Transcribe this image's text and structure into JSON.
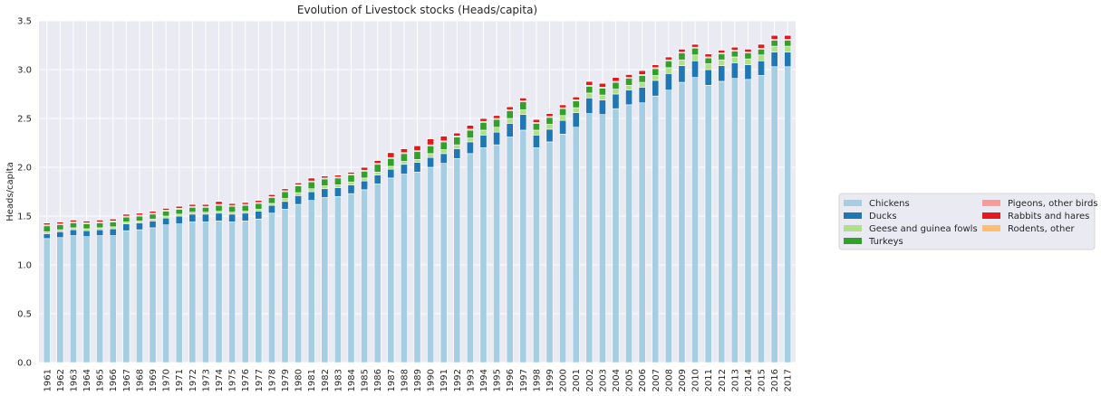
{
  "chart_data": {
    "type": "bar",
    "stacked": true,
    "title": "Evolution of Livestock stocks (Heads/capita)",
    "xlabel": "",
    "ylabel": "Heads/capita",
    "ylim": [
      0,
      3.5
    ],
    "yticks": [
      "0.0",
      "0.5",
      "1.0",
      "1.5",
      "2.0",
      "2.5",
      "3.0",
      "3.5"
    ],
    "grid": true,
    "legend_position": "right",
    "categories": [
      "1961",
      "1962",
      "1963",
      "1964",
      "1965",
      "1966",
      "1967",
      "1968",
      "1969",
      "1970",
      "1971",
      "1972",
      "1973",
      "1974",
      "1975",
      "1976",
      "1977",
      "1978",
      "1979",
      "1980",
      "1981",
      "1982",
      "1983",
      "1984",
      "1985",
      "1986",
      "1987",
      "1988",
      "1989",
      "1990",
      "1991",
      "1992",
      "1993",
      "1994",
      "1995",
      "1996",
      "1997",
      "1998",
      "1999",
      "2000",
      "2001",
      "2002",
      "2003",
      "2004",
      "2005",
      "2006",
      "2007",
      "2008",
      "2009",
      "2010",
      "2011",
      "2012",
      "2013",
      "2014",
      "2015",
      "2016",
      "2017"
    ],
    "series": [
      {
        "name": "Chickens",
        "color": "#a6cee3",
        "values": [
          1.27,
          1.28,
          1.3,
          1.29,
          1.3,
          1.3,
          1.35,
          1.36,
          1.38,
          1.41,
          1.42,
          1.44,
          1.44,
          1.45,
          1.44,
          1.45,
          1.47,
          1.53,
          1.57,
          1.62,
          1.66,
          1.69,
          1.7,
          1.73,
          1.77,
          1.83,
          1.89,
          1.93,
          1.95,
          2.0,
          2.04,
          2.09,
          2.14,
          2.2,
          2.23,
          2.31,
          2.38,
          2.2,
          2.26,
          2.34,
          2.41,
          2.55,
          2.54,
          2.6,
          2.64,
          2.66,
          2.73,
          2.79,
          2.87,
          2.92,
          2.84,
          2.88,
          2.91,
          2.9,
          2.94,
          3.03,
          3.03
        ]
      },
      {
        "name": "Ducks",
        "color": "#1f78b4",
        "values": [
          0.05,
          0.06,
          0.06,
          0.06,
          0.06,
          0.07,
          0.07,
          0.07,
          0.07,
          0.07,
          0.08,
          0.08,
          0.08,
          0.08,
          0.08,
          0.08,
          0.08,
          0.08,
          0.08,
          0.09,
          0.09,
          0.09,
          0.09,
          0.09,
          0.09,
          0.09,
          0.09,
          0.1,
          0.1,
          0.1,
          0.1,
          0.1,
          0.12,
          0.13,
          0.13,
          0.14,
          0.16,
          0.13,
          0.13,
          0.14,
          0.15,
          0.16,
          0.15,
          0.15,
          0.15,
          0.16,
          0.16,
          0.17,
          0.17,
          0.17,
          0.16,
          0.16,
          0.16,
          0.15,
          0.15,
          0.15,
          0.15
        ]
      },
      {
        "name": "Geese and guinea fowls",
        "color": "#b2df8a",
        "values": [
          0.02,
          0.02,
          0.02,
          0.02,
          0.02,
          0.02,
          0.02,
          0.02,
          0.02,
          0.02,
          0.02,
          0.02,
          0.02,
          0.02,
          0.02,
          0.02,
          0.02,
          0.02,
          0.03,
          0.03,
          0.03,
          0.03,
          0.03,
          0.03,
          0.03,
          0.03,
          0.03,
          0.03,
          0.03,
          0.04,
          0.04,
          0.04,
          0.04,
          0.05,
          0.05,
          0.05,
          0.05,
          0.05,
          0.05,
          0.05,
          0.05,
          0.05,
          0.05,
          0.05,
          0.05,
          0.05,
          0.05,
          0.06,
          0.06,
          0.06,
          0.06,
          0.06,
          0.06,
          0.06,
          0.06,
          0.06,
          0.06
        ]
      },
      {
        "name": "Turkeys",
        "color": "#33a02c",
        "values": [
          0.06,
          0.05,
          0.05,
          0.05,
          0.05,
          0.05,
          0.05,
          0.05,
          0.05,
          0.05,
          0.05,
          0.05,
          0.05,
          0.06,
          0.06,
          0.06,
          0.06,
          0.06,
          0.07,
          0.07,
          0.07,
          0.07,
          0.07,
          0.07,
          0.07,
          0.08,
          0.08,
          0.08,
          0.08,
          0.08,
          0.08,
          0.08,
          0.08,
          0.08,
          0.08,
          0.08,
          0.08,
          0.07,
          0.07,
          0.07,
          0.07,
          0.07,
          0.07,
          0.07,
          0.07,
          0.07,
          0.07,
          0.07,
          0.07,
          0.07,
          0.06,
          0.06,
          0.06,
          0.06,
          0.06,
          0.06,
          0.06
        ]
      },
      {
        "name": "Pigeons, other birds",
        "color": "#fb9a99",
        "values": [
          0.01,
          0.01,
          0.01,
          0.01,
          0.01,
          0.01,
          0.01,
          0.01,
          0.01,
          0.01,
          0.01,
          0.01,
          0.01,
          0.01,
          0.01,
          0.01,
          0.01,
          0.01,
          0.01,
          0.01,
          0.01,
          0.01,
          0.01,
          0.01,
          0.01,
          0.01,
          0.01,
          0.01,
          0.01,
          0.01,
          0.01,
          0.01,
          0.01,
          0.01,
          0.01,
          0.01,
          0.01,
          0.01,
          0.01,
          0.01,
          0.01,
          0.01,
          0.01,
          0.01,
          0.01,
          0.01,
          0.01,
          0.01,
          0.01,
          0.01,
          0.01,
          0.01,
          0.01,
          0.01,
          0.01,
          0.01,
          0.01
        ]
      },
      {
        "name": "Rabbits and hares",
        "color": "#e31a1c",
        "values": [
          0.02,
          0.02,
          0.02,
          0.02,
          0.02,
          0.02,
          0.02,
          0.02,
          0.02,
          0.02,
          0.02,
          0.02,
          0.02,
          0.03,
          0.02,
          0.02,
          0.02,
          0.02,
          0.02,
          0.02,
          0.03,
          0.02,
          0.02,
          0.02,
          0.03,
          0.03,
          0.05,
          0.04,
          0.05,
          0.06,
          0.05,
          0.03,
          0.04,
          0.03,
          0.03,
          0.03,
          0.03,
          0.03,
          0.03,
          0.03,
          0.03,
          0.04,
          0.04,
          0.04,
          0.03,
          0.04,
          0.03,
          0.03,
          0.03,
          0.03,
          0.03,
          0.03,
          0.03,
          0.03,
          0.04,
          0.04,
          0.04
        ]
      },
      {
        "name": "Rodents, other",
        "color": "#fdbf6f",
        "values": [
          0.002,
          0.002,
          0.002,
          0.002,
          0.002,
          0.002,
          0.002,
          0.002,
          0.002,
          0.002,
          0.002,
          0.002,
          0.002,
          0.002,
          0.002,
          0.002,
          0.002,
          0.002,
          0.002,
          0.002,
          0.002,
          0.002,
          0.002,
          0.002,
          0.002,
          0.002,
          0.002,
          0.002,
          0.002,
          0.002,
          0.002,
          0.002,
          0.002,
          0.002,
          0.002,
          0.002,
          0.002,
          0.002,
          0.002,
          0.002,
          0.002,
          0.002,
          0.002,
          0.002,
          0.002,
          0.002,
          0.002,
          0.002,
          0.002,
          0.002,
          0.002,
          0.002,
          0.002,
          0.002,
          0.002,
          0.002,
          0.002
        ]
      }
    ],
    "colors": {
      "plot_background": "#eaeaf2",
      "grid": "#ffffff",
      "text": "#262626"
    }
  }
}
